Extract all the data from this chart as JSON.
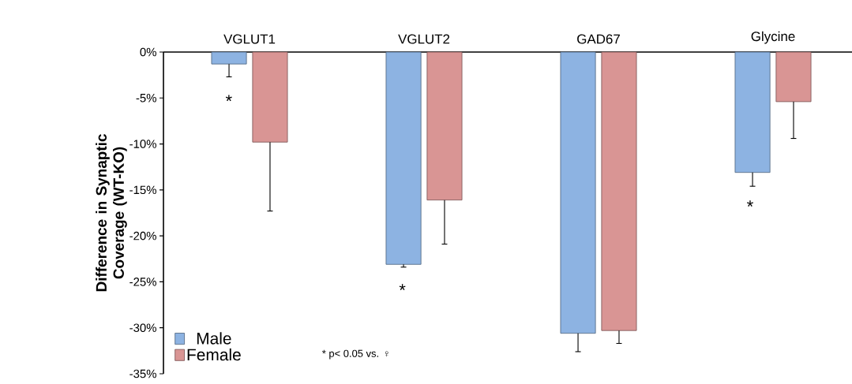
{
  "chart_data": {
    "type": "bar",
    "ylabel": "Difference in Synaptic Coverage (WT-KO)",
    "categories": [
      "VGLUT1",
      "VGLUT2",
      "GAD67",
      "Glycine"
    ],
    "series": [
      {
        "name": "Male",
        "color": "#8db3e2",
        "values": [
          -1.3,
          -23.1,
          -30.6,
          -13.1
        ],
        "errors": [
          [
            -2.7,
            -1.3
          ],
          [
            -23.4,
            -23.1
          ],
          [
            -32.6,
            -30.6
          ],
          [
            -14.6,
            -13.1
          ]
        ]
      },
      {
        "name": "Female",
        "color": "#d99594",
        "values": [
          -9.8,
          -16.1,
          -30.3,
          -5.4
        ],
        "errors": [
          [
            -17.3,
            -9.8
          ],
          [
            -20.9,
            -16.1
          ],
          [
            -31.7,
            -30.3
          ],
          [
            -9.4,
            -5.4
          ]
        ]
      }
    ],
    "ylim": [
      -35,
      0
    ],
    "yticks": [
      {
        "value": 0,
        "label": "0%"
      },
      {
        "value": -5,
        "label": "-5%"
      },
      {
        "value": -10,
        "label": "-10%"
      },
      {
        "value": -15,
        "label": "-15%"
      },
      {
        "value": -20,
        "label": "-20%"
      },
      {
        "value": -25,
        "label": "-25%"
      },
      {
        "value": -30,
        "label": "-30%"
      },
      {
        "value": -35,
        "label": "-35%"
      }
    ],
    "annotations": [
      "*",
      "*",
      "*",
      "* p< 0.05 vs. ♀"
    ],
    "legend": "bottom left",
    "grid": false
  }
}
